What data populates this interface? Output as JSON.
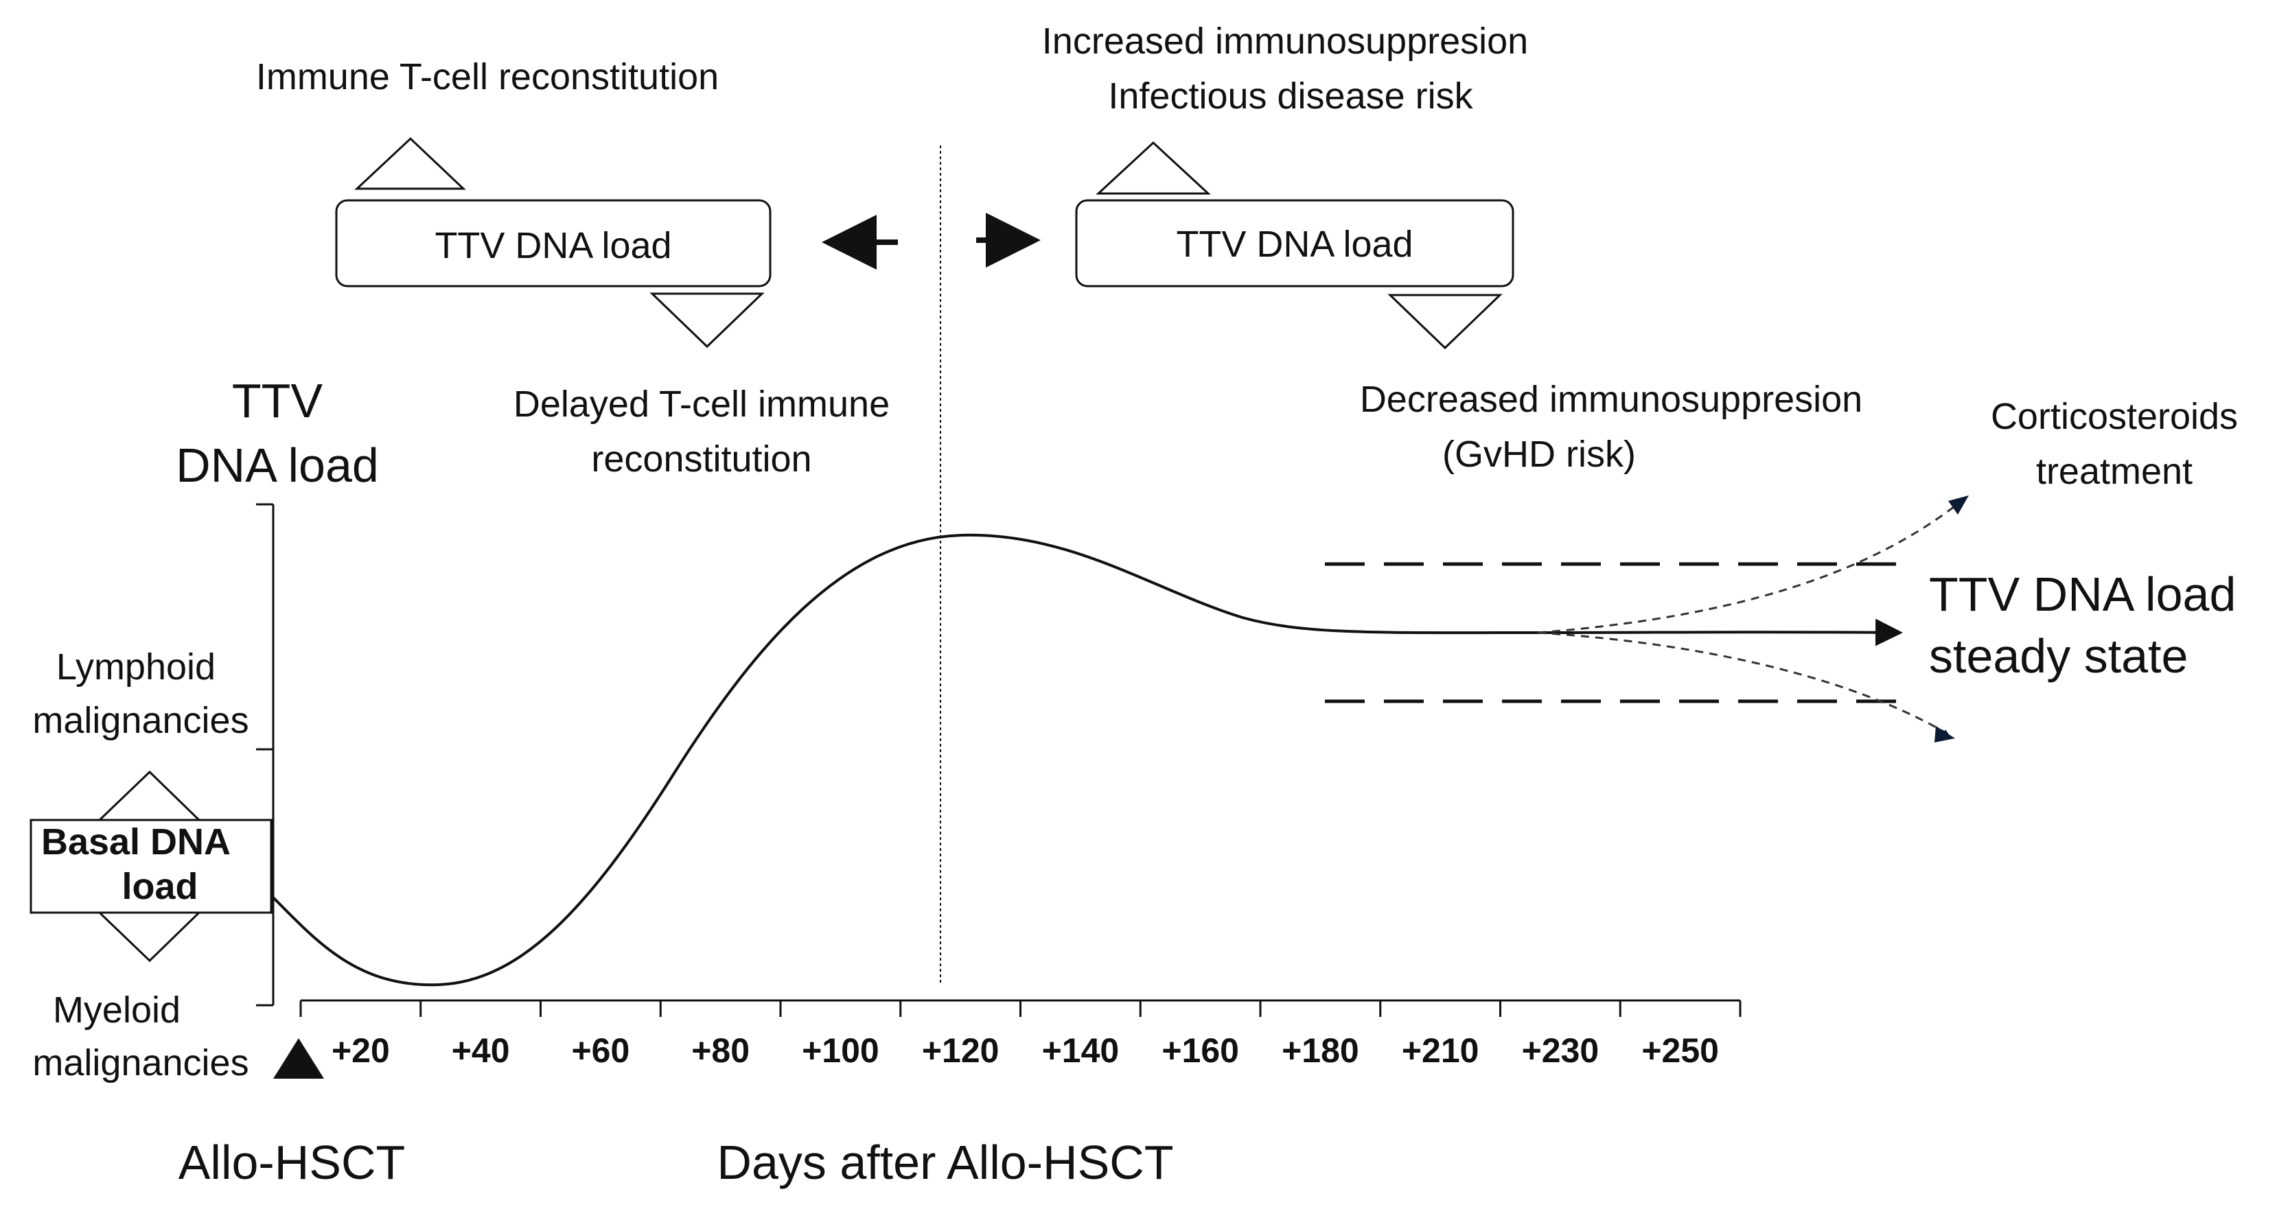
{
  "top_left": {
    "up_label": "Immune T-cell reconstitution",
    "box_label": "TTV DNA load",
    "down_label": [
      "Delayed T-cell immune",
      "reconstitution"
    ]
  },
  "top_right": {
    "up_label": [
      "Increased immunosuppresion",
      "Infectious disease risk"
    ],
    "box_label": "TTV DNA load",
    "down_label": [
      "Decreased immunosuppresion",
      "(GvHD risk)"
    ]
  },
  "y_axis": {
    "title": [
      "TTV",
      "DNA load"
    ],
    "upper_label": [
      "Lymphoid",
      "malignancies"
    ],
    "basal_label": [
      "Basal DNA",
      "load"
    ],
    "lower_label": [
      "Myeloid",
      "malignancies"
    ]
  },
  "x_axis": {
    "origin_label": "Allo-HSCT",
    "title": "Days after Allo-HSCT",
    "ticks": [
      "+20",
      "+40",
      "+60",
      "+80",
      "+100",
      "+120",
      "+140",
      "+160",
      "+180",
      "+210",
      "+230",
      "+250"
    ]
  },
  "outcomes": {
    "steroids_label": [
      "Corticosteroids",
      "treatment"
    ],
    "steady_label": [
      "TTV DNA load",
      "steady state"
    ]
  }
}
